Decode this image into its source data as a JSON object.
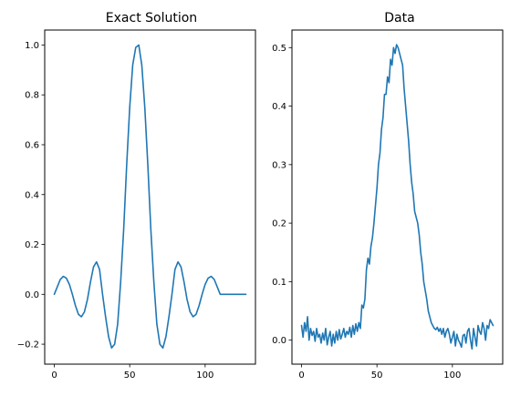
{
  "chart_data": [
    {
      "type": "line",
      "title": "Exact Solution",
      "xlabel": "",
      "ylabel": "",
      "xlim": [
        -6.35,
        133.35
      ],
      "ylim": [
        -0.28,
        1.06
      ],
      "xticks": [
        0,
        50,
        100
      ],
      "yticks": [
        -0.2,
        0.0,
        0.2,
        0.4,
        0.6,
        0.8,
        1.0
      ],
      "ytick_labels": [
        "−0.2",
        "0.0",
        "0.2",
        "0.4",
        "0.6",
        "0.8",
        "1.0"
      ],
      "grid": false,
      "color": "#1f77b4",
      "series": [
        {
          "x": [
            0,
            2,
            4,
            6,
            8,
            10,
            12,
            14,
            16,
            18,
            20,
            22,
            24,
            26,
            28,
            30,
            32,
            34,
            36,
            38,
            40,
            42,
            44,
            46,
            48,
            50,
            52,
            54,
            56,
            58,
            60,
            62,
            64,
            66,
            68,
            70,
            72,
            74,
            76,
            78,
            80,
            82,
            84,
            86,
            88,
            90,
            92,
            94,
            96,
            98,
            100,
            102,
            104,
            106,
            108,
            110,
            112,
            114,
            116,
            118,
            120,
            122,
            124,
            126,
            127
          ],
          "values": [
            0.0,
            0.03,
            0.06,
            0.072,
            0.065,
            0.04,
            0.0,
            -0.045,
            -0.08,
            -0.09,
            -0.07,
            -0.02,
            0.05,
            0.11,
            0.13,
            0.1,
            0.0,
            -0.09,
            -0.17,
            -0.215,
            -0.2,
            -0.12,
            0.05,
            0.26,
            0.52,
            0.75,
            0.92,
            0.99,
            1.0,
            0.92,
            0.75,
            0.52,
            0.26,
            0.05,
            -0.12,
            -0.2,
            -0.215,
            -0.17,
            -0.09,
            0.0,
            0.1,
            0.13,
            0.11,
            0.05,
            -0.02,
            -0.07,
            -0.09,
            -0.08,
            -0.045,
            0.0,
            0.04,
            0.065,
            0.072,
            0.06,
            0.03,
            0.0,
            0.0,
            0.0,
            0.0,
            0.0,
            0.0,
            0.0,
            0.0,
            0.0,
            0.0
          ]
        }
      ]
    },
    {
      "type": "line",
      "title": "Data",
      "xlabel": "",
      "ylabel": "",
      "xlim": [
        -6.35,
        133.35
      ],
      "ylim": [
        -0.041,
        0.53
      ],
      "xticks": [
        0,
        50,
        100
      ],
      "yticks": [
        0.0,
        0.1,
        0.2,
        0.3,
        0.4,
        0.5
      ],
      "ytick_labels": [
        "0.0",
        "0.1",
        "0.2",
        "0.3",
        "0.4",
        "0.5"
      ],
      "grid": false,
      "color": "#1f77b4",
      "series": [
        {
          "x": [
            0,
            1,
            2,
            3,
            4,
            5,
            6,
            7,
            8,
            9,
            10,
            11,
            12,
            13,
            14,
            15,
            16,
            17,
            18,
            19,
            20,
            21,
            22,
            23,
            24,
            25,
            26,
            27,
            28,
            29,
            30,
            31,
            32,
            33,
            34,
            35,
            36,
            37,
            38,
            39,
            40,
            41,
            42,
            43,
            44,
            45,
            46,
            47,
            48,
            49,
            50,
            51,
            52,
            53,
            54,
            55,
            56,
            57,
            58,
            59,
            60,
            61,
            62,
            63,
            64,
            65,
            66,
            67,
            68,
            69,
            70,
            71,
            72,
            73,
            74,
            75,
            76,
            77,
            78,
            79,
            80,
            81,
            82,
            83,
            84,
            85,
            86,
            87,
            88,
            89,
            90,
            91,
            92,
            93,
            94,
            95,
            96,
            97,
            98,
            99,
            100,
            101,
            102,
            103,
            104,
            105,
            106,
            107,
            108,
            109,
            110,
            111,
            112,
            113,
            114,
            115,
            116,
            117,
            118,
            119,
            120,
            121,
            122,
            123,
            124,
            125,
            126,
            127
          ],
          "values": [
            0.025,
            0.005,
            0.03,
            0.015,
            0.04,
            0.0,
            0.02,
            0.008,
            0.015,
            -0.002,
            0.02,
            0.005,
            0.01,
            -0.005,
            0.012,
            0.0,
            0.02,
            -0.008,
            0.005,
            0.015,
            -0.01,
            0.01,
            -0.005,
            0.015,
            0.0,
            0.018,
            0.002,
            0.01,
            0.02,
            0.005,
            0.015,
            0.01,
            0.022,
            0.005,
            0.025,
            0.01,
            0.028,
            0.015,
            0.03,
            0.02,
            0.06,
            0.055,
            0.07,
            0.12,
            0.14,
            0.13,
            0.16,
            0.175,
            0.2,
            0.23,
            0.26,
            0.3,
            0.32,
            0.36,
            0.38,
            0.42,
            0.42,
            0.45,
            0.44,
            0.48,
            0.47,
            0.5,
            0.49,
            0.505,
            0.5,
            0.49,
            0.48,
            0.47,
            0.43,
            0.4,
            0.37,
            0.34,
            0.3,
            0.27,
            0.25,
            0.22,
            0.21,
            0.2,
            0.18,
            0.15,
            0.13,
            0.1,
            0.085,
            0.07,
            0.05,
            0.04,
            0.03,
            0.025,
            0.02,
            0.018,
            0.022,
            0.015,
            0.02,
            0.01,
            0.02,
            0.005,
            0.015,
            0.02,
            0.01,
            -0.005,
            0.005,
            0.015,
            -0.01,
            0.01,
            0.0,
            -0.005,
            -0.012,
            0.008,
            0.01,
            -0.005,
            0.015,
            0.02,
            0.0,
            -0.015,
            0.02,
            0.005,
            -0.01,
            0.025,
            0.015,
            0.01,
            0.03,
            0.02,
            0.0,
            0.025,
            0.02,
            0.035,
            0.03,
            0.025
          ]
        }
      ]
    }
  ]
}
